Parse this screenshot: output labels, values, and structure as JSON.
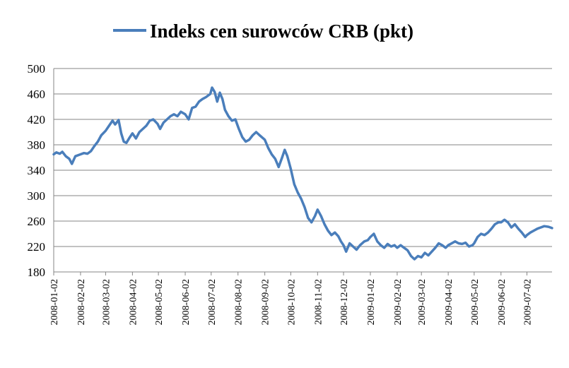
{
  "chart_data": {
    "type": "line",
    "legend": {
      "position": "top",
      "entries": [
        "Indeks cen surowców CRB (pkt)"
      ]
    },
    "series": [
      {
        "name": "Indeks cen surowców CRB (pkt)",
        "color": "#4a7ebb",
        "points": [
          [
            "2008-01-02",
            365
          ],
          [
            "2008-01-05",
            368
          ],
          [
            "2008-01-09",
            366
          ],
          [
            "2008-01-12",
            369
          ],
          [
            "2008-01-16",
            362
          ],
          [
            "2008-01-20",
            358
          ],
          [
            "2008-01-23",
            350
          ],
          [
            "2008-01-27",
            362
          ],
          [
            "2008-02-02",
            365
          ],
          [
            "2008-02-06",
            367
          ],
          [
            "2008-02-10",
            366
          ],
          [
            "2008-02-14",
            370
          ],
          [
            "2008-02-18",
            378
          ],
          [
            "2008-02-22",
            385
          ],
          [
            "2008-02-26",
            395
          ],
          [
            "2008-03-02",
            402
          ],
          [
            "2008-03-06",
            410
          ],
          [
            "2008-03-10",
            418
          ],
          [
            "2008-03-13",
            412
          ],
          [
            "2008-03-17",
            419
          ],
          [
            "2008-03-20",
            398
          ],
          [
            "2008-03-23",
            385
          ],
          [
            "2008-03-26",
            383
          ],
          [
            "2008-03-30",
            392
          ],
          [
            "2008-04-02",
            398
          ],
          [
            "2008-04-06",
            390
          ],
          [
            "2008-04-10",
            400
          ],
          [
            "2008-04-14",
            405
          ],
          [
            "2008-04-18",
            410
          ],
          [
            "2008-04-22",
            418
          ],
          [
            "2008-04-26",
            420
          ],
          [
            "2008-05-01",
            413
          ],
          [
            "2008-05-04",
            405
          ],
          [
            "2008-05-08",
            415
          ],
          [
            "2008-05-12",
            420
          ],
          [
            "2008-05-16",
            425
          ],
          [
            "2008-05-20",
            428
          ],
          [
            "2008-05-24",
            425
          ],
          [
            "2008-05-28",
            432
          ],
          [
            "2008-06-02",
            428
          ],
          [
            "2008-06-06",
            420
          ],
          [
            "2008-06-10",
            438
          ],
          [
            "2008-06-14",
            440
          ],
          [
            "2008-06-18",
            448
          ],
          [
            "2008-06-22",
            452
          ],
          [
            "2008-06-26",
            455
          ],
          [
            "2008-07-01",
            460
          ],
          [
            "2008-07-03",
            470
          ],
          [
            "2008-07-06",
            463
          ],
          [
            "2008-07-09",
            448
          ],
          [
            "2008-07-12",
            462
          ],
          [
            "2008-07-15",
            452
          ],
          [
            "2008-07-18",
            435
          ],
          [
            "2008-07-22",
            425
          ],
          [
            "2008-07-26",
            418
          ],
          [
            "2008-07-30",
            420
          ],
          [
            "2008-08-03",
            405
          ],
          [
            "2008-08-07",
            392
          ],
          [
            "2008-08-11",
            385
          ],
          [
            "2008-08-15",
            388
          ],
          [
            "2008-08-19",
            395
          ],
          [
            "2008-08-23",
            400
          ],
          [
            "2008-08-27",
            395
          ],
          [
            "2008-09-02",
            388
          ],
          [
            "2008-09-06",
            375
          ],
          [
            "2008-09-10",
            365
          ],
          [
            "2008-09-14",
            358
          ],
          [
            "2008-09-18",
            345
          ],
          [
            "2008-09-22",
            360
          ],
          [
            "2008-09-25",
            372
          ],
          [
            "2008-09-28",
            362
          ],
          [
            "2008-10-02",
            342
          ],
          [
            "2008-10-06",
            318
          ],
          [
            "2008-10-10",
            305
          ],
          [
            "2008-10-14",
            295
          ],
          [
            "2008-10-18",
            282
          ],
          [
            "2008-10-22",
            265
          ],
          [
            "2008-10-26",
            258
          ],
          [
            "2008-10-30",
            268
          ],
          [
            "2008-11-02",
            278
          ],
          [
            "2008-11-06",
            268
          ],
          [
            "2008-11-10",
            255
          ],
          [
            "2008-11-14",
            245
          ],
          [
            "2008-11-18",
            238
          ],
          [
            "2008-11-22",
            242
          ],
          [
            "2008-11-26",
            236
          ],
          [
            "2008-11-29",
            228
          ],
          [
            "2008-12-02",
            222
          ],
          [
            "2008-12-05",
            212
          ],
          [
            "2008-12-09",
            225
          ],
          [
            "2008-12-13",
            220
          ],
          [
            "2008-12-17",
            215
          ],
          [
            "2008-12-21",
            222
          ],
          [
            "2008-12-26",
            228
          ],
          [
            "2008-12-30",
            230
          ],
          [
            "2009-01-02",
            235
          ],
          [
            "2009-01-06",
            240
          ],
          [
            "2009-01-10",
            228
          ],
          [
            "2009-01-14",
            222
          ],
          [
            "2009-01-18",
            218
          ],
          [
            "2009-01-22",
            224
          ],
          [
            "2009-01-26",
            220
          ],
          [
            "2009-01-30",
            222
          ],
          [
            "2009-02-02",
            218
          ],
          [
            "2009-02-06",
            222
          ],
          [
            "2009-02-10",
            218
          ],
          [
            "2009-02-14",
            214
          ],
          [
            "2009-02-18",
            205
          ],
          [
            "2009-02-22",
            200
          ],
          [
            "2009-02-26",
            205
          ],
          [
            "2009-03-02",
            203
          ],
          [
            "2009-03-06",
            210
          ],
          [
            "2009-03-10",
            206
          ],
          [
            "2009-03-14",
            212
          ],
          [
            "2009-03-18",
            218
          ],
          [
            "2009-03-22",
            225
          ],
          [
            "2009-03-26",
            222
          ],
          [
            "2009-03-30",
            218
          ],
          [
            "2009-04-02",
            222
          ],
          [
            "2009-04-06",
            225
          ],
          [
            "2009-04-10",
            228
          ],
          [
            "2009-04-14",
            225
          ],
          [
            "2009-04-18",
            224
          ],
          [
            "2009-04-22",
            226
          ],
          [
            "2009-04-26",
            220
          ],
          [
            "2009-04-30",
            222
          ],
          [
            "2009-05-02",
            225
          ],
          [
            "2009-05-06",
            235
          ],
          [
            "2009-05-10",
            240
          ],
          [
            "2009-05-14",
            238
          ],
          [
            "2009-05-18",
            242
          ],
          [
            "2009-05-22",
            248
          ],
          [
            "2009-05-26",
            255
          ],
          [
            "2009-05-30",
            258
          ],
          [
            "2009-06-02",
            258
          ],
          [
            "2009-06-06",
            262
          ],
          [
            "2009-06-10",
            258
          ],
          [
            "2009-06-14",
            250
          ],
          [
            "2009-06-18",
            255
          ],
          [
            "2009-06-22",
            248
          ],
          [
            "2009-06-26",
            242
          ],
          [
            "2009-06-30",
            235
          ],
          [
            "2009-07-02",
            238
          ],
          [
            "2009-07-06",
            242
          ],
          [
            "2009-07-10",
            245
          ],
          [
            "2009-07-14",
            248
          ],
          [
            "2009-07-18",
            250
          ],
          [
            "2009-07-22",
            252
          ],
          [
            "2009-07-27",
            251
          ],
          [
            "2009-07-31",
            249
          ]
        ]
      }
    ],
    "x_ticks": [
      "2008-01-02",
      "2008-02-02",
      "2008-03-02",
      "2008-04-02",
      "2008-05-02",
      "2008-06-02",
      "2008-07-02",
      "2008-08-02",
      "2008-09-02",
      "2008-10-02",
      "2008-11-02",
      "2008-12-02",
      "2009-01-02",
      "2009-02-02",
      "2009-03-02",
      "2009-04-02",
      "2009-05-02",
      "2009-06-02",
      "2009-07-02"
    ],
    "x_range": [
      "2008-01-02",
      "2009-07-31"
    ],
    "y_ticks": [
      180,
      220,
      260,
      300,
      340,
      380,
      420,
      460,
      500
    ],
    "ylim": [
      180,
      500
    ],
    "grid": {
      "horizontal": true,
      "vertical": false,
      "color": "#868686"
    }
  }
}
